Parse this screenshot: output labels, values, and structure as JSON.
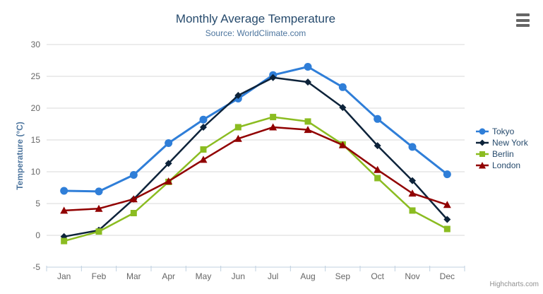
{
  "chart": {
    "title": "Monthly Average Temperature",
    "subtitle": "Source: WorldClimate.com",
    "credits": "Highcharts.com"
  },
  "colors": {
    "title": "#274b6d",
    "subtitle": "#4d759e",
    "axis_labels": "#666666",
    "axis_title": "#4d759e",
    "grid": "#d8d8d8",
    "axis_line": "#c0d0e0",
    "legend_text": "#274b6d",
    "credits": "#909090",
    "menu_icon": "#666666"
  },
  "chart_data": {
    "type": "line",
    "title": "Monthly Average Temperature",
    "subtitle": "Source: WorldClimate.com",
    "xlabel": "",
    "ylabel": "Temperature (°C)",
    "ylim": [
      -5,
      30
    ],
    "yticks": [
      -5,
      0,
      5,
      10,
      15,
      20,
      25,
      30
    ],
    "grid": true,
    "legend_position": "right",
    "categories": [
      "Jan",
      "Feb",
      "Mar",
      "Apr",
      "May",
      "Jun",
      "Jul",
      "Aug",
      "Sep",
      "Oct",
      "Nov",
      "Dec"
    ],
    "series": [
      {
        "name": "Tokyo",
        "color": "#2f7ed8",
        "marker": "circle",
        "values": [
          7.0,
          6.9,
          9.5,
          14.5,
          18.2,
          21.5,
          25.2,
          26.5,
          23.3,
          18.3,
          13.9,
          9.6
        ]
      },
      {
        "name": "New York",
        "color": "#0d233a",
        "marker": "diamond",
        "values": [
          -0.2,
          0.8,
          5.7,
          11.3,
          17.0,
          22.0,
          24.8,
          24.1,
          20.1,
          14.1,
          8.6,
          2.5
        ]
      },
      {
        "name": "Berlin",
        "color": "#8bbc21",
        "marker": "square",
        "values": [
          -0.9,
          0.6,
          3.5,
          8.4,
          13.5,
          17.0,
          18.6,
          17.9,
          14.3,
          9.0,
          3.9,
          1.0
        ]
      },
      {
        "name": "London",
        "color": "#910000",
        "marker": "triangle",
        "values": [
          3.9,
          4.2,
          5.7,
          8.5,
          11.9,
          15.2,
          17.0,
          16.6,
          14.2,
          10.3,
          6.6,
          4.8
        ]
      }
    ]
  }
}
